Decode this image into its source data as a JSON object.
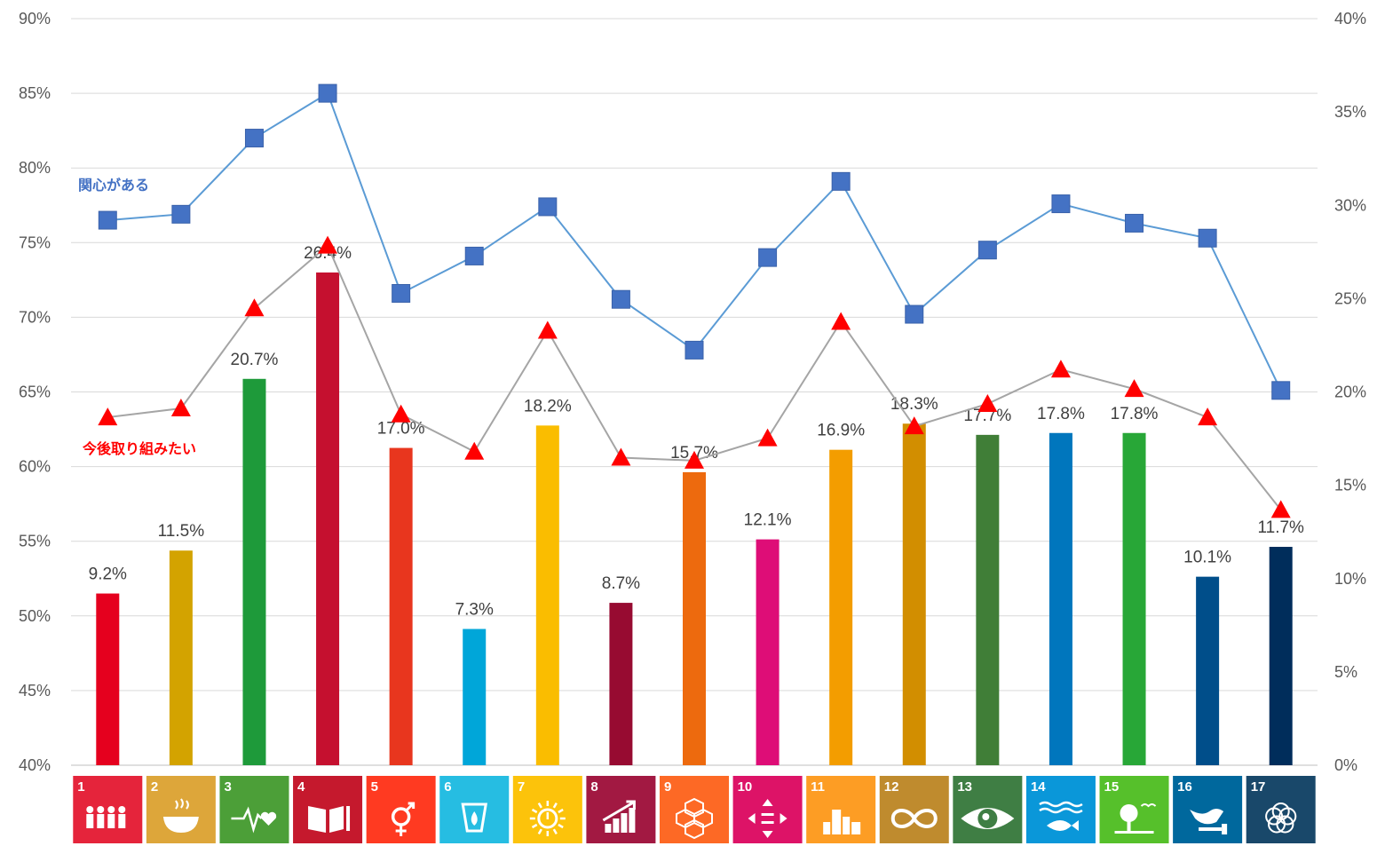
{
  "chart_data": {
    "type": "bar",
    "categories": [
      "1",
      "2",
      "3",
      "4",
      "5",
      "6",
      "7",
      "8",
      "9",
      "10",
      "11",
      "12",
      "13",
      "14",
      "15",
      "16",
      "17"
    ],
    "bar_series": {
      "values": [
        9.2,
        11.5,
        20.7,
        26.4,
        17.0,
        7.3,
        18.2,
        8.7,
        15.7,
        12.1,
        16.9,
        18.3,
        17.7,
        17.8,
        17.8,
        10.1,
        11.7
      ],
      "labels": [
        "9.2%",
        "11.5%",
        "20.7%",
        "26.4%",
        "17.0%",
        "7.3%",
        "18.2%",
        "8.7%",
        "15.7%",
        "12.1%",
        "16.9%",
        "18.3%",
        "17.7%",
        "17.8%",
        "17.8%",
        "10.1%",
        "11.7%"
      ],
      "axis": "right",
      "colors": [
        "#E5001E",
        "#D3A300",
        "#1E9A3A",
        "#C5102F",
        "#E8361E",
        "#00A6D9",
        "#FABD00",
        "#970B31",
        "#ED6A0E",
        "#DE0D77",
        "#F39D00",
        "#D28E00",
        "#407E37",
        "#0076BD",
        "#28A737",
        "#004E8A",
        "#002D5B"
      ]
    },
    "line_series": [
      {
        "name": "関心がある",
        "axis": "left",
        "color": "#4472C4",
        "line_color": "#5B9BD5",
        "marker": "square",
        "values": [
          76.5,
          76.9,
          82.0,
          85.0,
          71.6,
          74.1,
          77.4,
          71.2,
          67.8,
          74.0,
          79.1,
          70.2,
          74.5,
          77.6,
          76.3,
          75.3,
          65.1
        ]
      },
      {
        "name": "今後取り組みたい",
        "axis": "left",
        "color": "#FF0000",
        "line_color": "#A5A5A5",
        "marker": "triangle",
        "values": [
          63.3,
          63.9,
          70.6,
          74.8,
          63.5,
          61.0,
          69.1,
          60.6,
          60.4,
          61.9,
          69.7,
          62.7,
          64.2,
          66.5,
          65.2,
          63.3,
          57.1
        ]
      }
    ],
    "left_axis": {
      "ylim": [
        40,
        90
      ],
      "ticks": [
        "40%",
        "45%",
        "50%",
        "55%",
        "60%",
        "65%",
        "70%",
        "75%",
        "80%",
        "85%",
        "90%"
      ]
    },
    "right_axis": {
      "ylim": [
        0,
        40
      ],
      "ticks": [
        "0%",
        "5%",
        "10%",
        "15%",
        "20%",
        "25%",
        "30%",
        "35%",
        "40%"
      ]
    },
    "grid": true,
    "sdg_tiles": [
      {
        "num": "1",
        "color": "#E5243B",
        "icon": "people-icon"
      },
      {
        "num": "2",
        "color": "#DDA63A",
        "icon": "bowl-icon"
      },
      {
        "num": "3",
        "color": "#4C9F38",
        "icon": "heartbeat-icon"
      },
      {
        "num": "4",
        "color": "#C5192D",
        "icon": "book-icon"
      },
      {
        "num": "5",
        "color": "#FF3A21",
        "icon": "gender-icon"
      },
      {
        "num": "6",
        "color": "#26BDE2",
        "icon": "water-drop-icon"
      },
      {
        "num": "7",
        "color": "#FCC30B",
        "icon": "sun-power-icon"
      },
      {
        "num": "8",
        "color": "#A21942",
        "icon": "growth-chart-icon"
      },
      {
        "num": "9",
        "color": "#FD6925",
        "icon": "cubes-icon"
      },
      {
        "num": "10",
        "color": "#DD1367",
        "icon": "equality-icon"
      },
      {
        "num": "11",
        "color": "#FD9D24",
        "icon": "buildings-icon"
      },
      {
        "num": "12",
        "color": "#BF8B2E",
        "icon": "infinity-icon"
      },
      {
        "num": "13",
        "color": "#3F7E44",
        "icon": "earth-eye-icon"
      },
      {
        "num": "14",
        "color": "#0A97D9",
        "icon": "fish-icon"
      },
      {
        "num": "15",
        "color": "#56C02B",
        "icon": "tree-bird-icon"
      },
      {
        "num": "16",
        "color": "#00689D",
        "icon": "dove-gavel-icon"
      },
      {
        "num": "17",
        "color": "#19486A",
        "icon": "flower-rings-icon"
      }
    ]
  }
}
